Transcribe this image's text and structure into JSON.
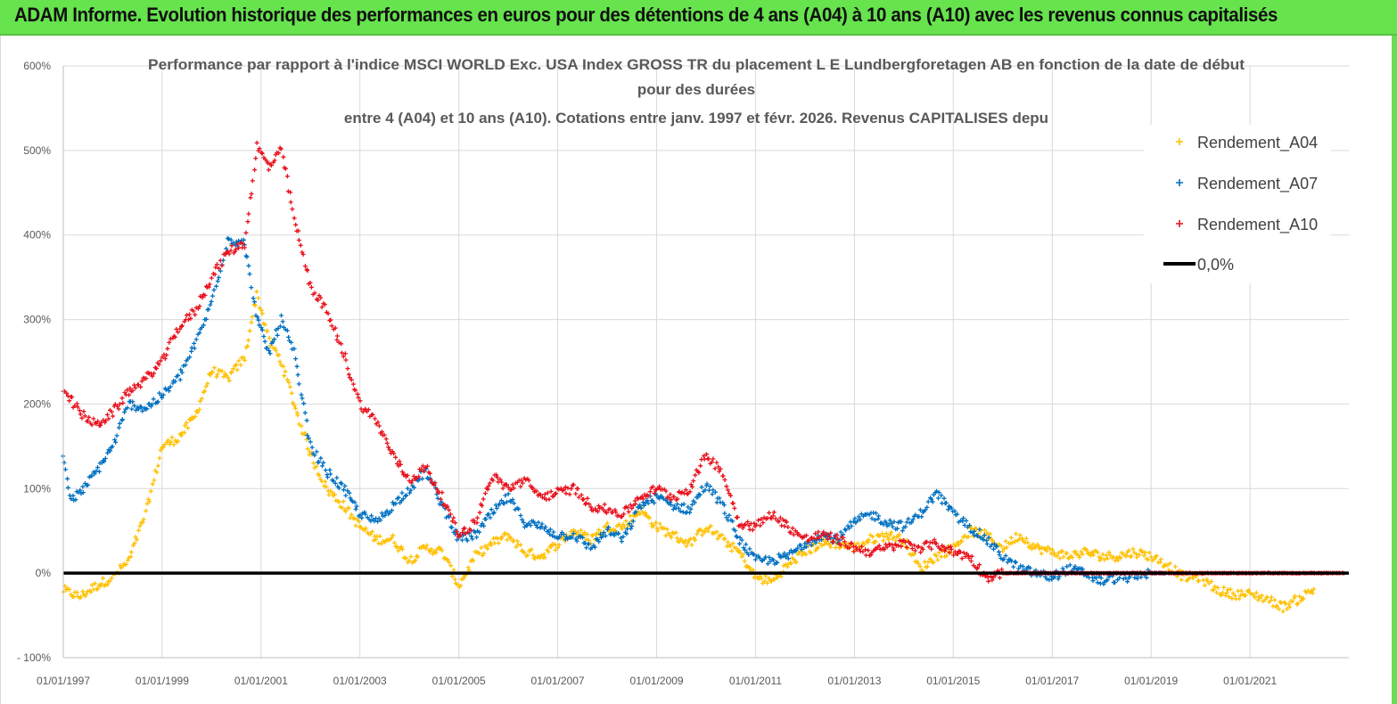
{
  "banner": {
    "title": "ADAM Informe. Evolution historique des performances en euros pour des détentions de 4 ans (A04) à 10 ans (A10) avec les revenus connus capitalisés",
    "background": "#66e34d"
  },
  "chart_data": {
    "type": "scatter",
    "title_lines": [
      "Performance par rapport à l'indice MSCI WORLD Exc. USA Index GROSS TR  du placement L E Lundbergforetagen AB en fonction de la date de début",
      "pour des durées",
      "entre 4 (A04) et 10 ans (A10). Cotations entre janv. 1997 et févr. 2026. Revenus CAPITALISES depu"
    ],
    "xlabel": "",
    "ylabel": "",
    "x_ticks": [
      "01/01/1997",
      "01/01/1999",
      "01/01/2001",
      "01/01/2003",
      "01/01/2005",
      "01/01/2007",
      "01/01/2009",
      "01/01/2011",
      "01/01/2013",
      "01/01/2015",
      "01/01/2017",
      "01/01/2019",
      "01/01/2021"
    ],
    "xlim": [
      "1997-01-01",
      "2023-01-01"
    ],
    "y_ticks": [
      "- 100%",
      "0%",
      "100%",
      "200%",
      "300%",
      "400%",
      "500%",
      "600%"
    ],
    "ylim": [
      -100,
      600
    ],
    "y_unit": "%",
    "grid": "vertical and horizontal, light gray",
    "legend_position": "top-right",
    "marker": "plus",
    "series": [
      {
        "name": "Rendement_A04",
        "color": "#ffc000",
        "points": [
          [
            "1997-01-01",
            -20
          ],
          [
            "1997-05-01",
            -28
          ],
          [
            "1997-09-01",
            -15
          ],
          [
            "1998-01-01",
            -5
          ],
          [
            "1998-05-01",
            15
          ],
          [
            "1998-09-01",
            70
          ],
          [
            "1999-01-01",
            150
          ],
          [
            "1999-05-01",
            160
          ],
          [
            "1999-09-01",
            185
          ],
          [
            "2000-01-01",
            240
          ],
          [
            "2000-05-01",
            230
          ],
          [
            "2000-09-01",
            255
          ],
          [
            "2000-12-01",
            330
          ],
          [
            "2001-03-01",
            275
          ],
          [
            "2001-06-01",
            250
          ],
          [
            "2001-09-01",
            200
          ],
          [
            "2002-01-01",
            140
          ],
          [
            "2002-05-01",
            100
          ],
          [
            "2002-09-01",
            80
          ],
          [
            "2003-01-01",
            55
          ],
          [
            "2003-05-01",
            40
          ],
          [
            "2003-09-01",
            40
          ],
          [
            "2004-01-01",
            15
          ],
          [
            "2004-05-01",
            30
          ],
          [
            "2004-09-01",
            25
          ],
          [
            "2005-01-01",
            -15
          ],
          [
            "2005-05-01",
            20
          ],
          [
            "2005-09-01",
            35
          ],
          [
            "2006-01-01",
            45
          ],
          [
            "2006-05-01",
            25
          ],
          [
            "2006-09-01",
            20
          ],
          [
            "2007-01-01",
            35
          ],
          [
            "2007-05-01",
            50
          ],
          [
            "2007-09-01",
            40
          ],
          [
            "2008-01-01",
            55
          ],
          [
            "2008-05-01",
            55
          ],
          [
            "2008-09-01",
            75
          ],
          [
            "2009-01-01",
            55
          ],
          [
            "2009-05-01",
            45
          ],
          [
            "2009-09-01",
            35
          ],
          [
            "2010-01-01",
            55
          ],
          [
            "2010-05-01",
            40
          ],
          [
            "2010-09-01",
            25
          ],
          [
            "2011-01-01",
            -5
          ],
          [
            "2011-05-01",
            -10
          ],
          [
            "2011-09-01",
            10
          ],
          [
            "2012-01-01",
            25
          ],
          [
            "2012-05-01",
            35
          ],
          [
            "2012-09-01",
            35
          ],
          [
            "2013-01-01",
            30
          ],
          [
            "2013-05-01",
            40
          ],
          [
            "2013-09-01",
            45
          ],
          [
            "2014-01-01",
            40
          ],
          [
            "2014-05-01",
            5
          ],
          [
            "2014-09-01",
            20
          ],
          [
            "2015-01-01",
            30
          ],
          [
            "2015-05-01",
            50
          ],
          [
            "2015-09-01",
            45
          ],
          [
            "2016-01-01",
            30
          ],
          [
            "2016-05-01",
            45
          ],
          [
            "2016-09-01",
            30
          ],
          [
            "2017-01-01",
            25
          ],
          [
            "2017-05-01",
            20
          ],
          [
            "2017-09-01",
            25
          ],
          [
            "2018-01-01",
            20
          ],
          [
            "2018-05-01",
            20
          ],
          [
            "2018-09-01",
            25
          ],
          [
            "2019-01-01",
            20
          ],
          [
            "2019-05-01",
            10
          ],
          [
            "2019-09-01",
            -5
          ],
          [
            "2020-01-01",
            -5
          ],
          [
            "2020-05-01",
            -20
          ],
          [
            "2020-09-01",
            -25
          ],
          [
            "2021-01-01",
            -25
          ],
          [
            "2021-05-01",
            -30
          ],
          [
            "2021-09-01",
            -40
          ],
          [
            "2022-01-01",
            -30
          ],
          [
            "2022-05-01",
            -18
          ]
        ]
      },
      {
        "name": "Rendement_A07",
        "color": "#0070c0",
        "points": [
          [
            "1997-01-01",
            140
          ],
          [
            "1997-03-01",
            85
          ],
          [
            "1997-06-01",
            100
          ],
          [
            "1997-09-01",
            120
          ],
          [
            "1998-01-01",
            150
          ],
          [
            "1998-05-01",
            200
          ],
          [
            "1998-09-01",
            195
          ],
          [
            "1999-01-01",
            210
          ],
          [
            "1999-05-01",
            230
          ],
          [
            "1999-09-01",
            270
          ],
          [
            "2000-01-01",
            320
          ],
          [
            "2000-05-01",
            395
          ],
          [
            "2000-09-01",
            390
          ],
          [
            "2000-12-01",
            300
          ],
          [
            "2001-03-01",
            260
          ],
          [
            "2001-06-01",
            300
          ],
          [
            "2001-09-01",
            260
          ],
          [
            "2002-01-01",
            150
          ],
          [
            "2002-05-01",
            120
          ],
          [
            "2002-09-01",
            100
          ],
          [
            "2003-01-01",
            70
          ],
          [
            "2003-05-01",
            60
          ],
          [
            "2003-09-01",
            80
          ],
          [
            "2004-01-01",
            100
          ],
          [
            "2004-05-01",
            120
          ],
          [
            "2004-09-01",
            80
          ],
          [
            "2005-01-01",
            40
          ],
          [
            "2005-05-01",
            45
          ],
          [
            "2005-09-01",
            70
          ],
          [
            "2006-01-01",
            90
          ],
          [
            "2006-05-01",
            60
          ],
          [
            "2006-09-01",
            55
          ],
          [
            "2007-01-01",
            45
          ],
          [
            "2007-05-01",
            45
          ],
          [
            "2007-09-01",
            30
          ],
          [
            "2008-01-01",
            50
          ],
          [
            "2008-05-01",
            40
          ],
          [
            "2008-09-01",
            80
          ],
          [
            "2009-01-01",
            90
          ],
          [
            "2009-05-01",
            80
          ],
          [
            "2009-09-01",
            75
          ],
          [
            "2010-01-01",
            105
          ],
          [
            "2010-05-01",
            80
          ],
          [
            "2010-09-01",
            40
          ],
          [
            "2011-01-01",
            15
          ],
          [
            "2011-05-01",
            15
          ],
          [
            "2011-09-01",
            20
          ],
          [
            "2012-01-01",
            35
          ],
          [
            "2012-05-01",
            45
          ],
          [
            "2012-09-01",
            40
          ],
          [
            "2013-01-01",
            60
          ],
          [
            "2013-05-01",
            70
          ],
          [
            "2013-09-01",
            60
          ],
          [
            "2014-01-01",
            55
          ],
          [
            "2014-05-01",
            70
          ],
          [
            "2014-09-01",
            95
          ],
          [
            "2015-01-01",
            70
          ],
          [
            "2015-05-01",
            55
          ],
          [
            "2015-09-01",
            40
          ],
          [
            "2016-01-01",
            20
          ],
          [
            "2016-05-01",
            5
          ],
          [
            "2016-09-01",
            0
          ],
          [
            "2017-01-01",
            -5
          ],
          [
            "2017-05-01",
            5
          ],
          [
            "2017-09-01",
            0
          ],
          [
            "2018-01-01",
            -10
          ],
          [
            "2018-05-01",
            -5
          ],
          [
            "2018-09-01",
            -5
          ],
          [
            "2019-01-01",
            0
          ],
          [
            "2019-05-01",
            0
          ]
        ]
      },
      {
        "name": "Rendement_A10",
        "color": "#e8111c",
        "points": [
          [
            "1997-01-01",
            220
          ],
          [
            "1997-05-01",
            190
          ],
          [
            "1997-09-01",
            175
          ],
          [
            "1998-01-01",
            190
          ],
          [
            "1998-05-01",
            215
          ],
          [
            "1998-09-01",
            230
          ],
          [
            "1999-01-01",
            250
          ],
          [
            "1999-05-01",
            290
          ],
          [
            "1999-09-01",
            310
          ],
          [
            "2000-01-01",
            350
          ],
          [
            "2000-05-01",
            380
          ],
          [
            "2000-09-01",
            390
          ],
          [
            "2000-12-01",
            505
          ],
          [
            "2001-03-01",
            480
          ],
          [
            "2001-06-01",
            500
          ],
          [
            "2001-09-01",
            420
          ],
          [
            "2002-01-01",
            340
          ],
          [
            "2002-05-01",
            310
          ],
          [
            "2002-09-01",
            260
          ],
          [
            "2003-01-01",
            200
          ],
          [
            "2003-05-01",
            180
          ],
          [
            "2003-09-01",
            140
          ],
          [
            "2004-01-01",
            110
          ],
          [
            "2004-05-01",
            125
          ],
          [
            "2004-09-01",
            90
          ],
          [
            "2005-01-01",
            45
          ],
          [
            "2005-05-01",
            60
          ],
          [
            "2005-09-01",
            115
          ],
          [
            "2006-01-01",
            100
          ],
          [
            "2006-05-01",
            110
          ],
          [
            "2006-09-01",
            90
          ],
          [
            "2007-01-01",
            95
          ],
          [
            "2007-05-01",
            100
          ],
          [
            "2007-09-01",
            80
          ],
          [
            "2008-01-01",
            75
          ],
          [
            "2008-05-01",
            70
          ],
          [
            "2008-09-01",
            90
          ],
          [
            "2009-01-01",
            100
          ],
          [
            "2009-05-01",
            90
          ],
          [
            "2009-09-01",
            100
          ],
          [
            "2010-01-01",
            140
          ],
          [
            "2010-05-01",
            120
          ],
          [
            "2010-09-01",
            60
          ],
          [
            "2011-01-01",
            55
          ],
          [
            "2011-05-01",
            70
          ],
          [
            "2011-09-01",
            55
          ],
          [
            "2012-01-01",
            40
          ],
          [
            "2012-05-01",
            45
          ],
          [
            "2012-09-01",
            40
          ],
          [
            "2013-01-01",
            30
          ],
          [
            "2013-05-01",
            25
          ],
          [
            "2013-09-01",
            30
          ],
          [
            "2014-01-01",
            35
          ],
          [
            "2014-05-01",
            30
          ],
          [
            "2014-09-01",
            35
          ],
          [
            "2015-01-01",
            25
          ],
          [
            "2015-05-01",
            20
          ],
          [
            "2015-09-01",
            -5
          ],
          [
            "2016-01-01",
            0
          ],
          [
            "2016-05-01",
            0
          ],
          [
            "2017-01-01",
            0
          ],
          [
            "2018-01-01",
            0
          ],
          [
            "2019-01-01",
            0
          ],
          [
            "2020-01-01",
            0
          ],
          [
            "2021-01-01",
            0
          ],
          [
            "2022-01-01",
            0
          ],
          [
            "2022-12-01",
            0
          ]
        ]
      },
      {
        "name": "0,0%",
        "color": "#000000",
        "points": [
          [
            "1997-01-01",
            0
          ],
          [
            "2023-01-01",
            0
          ]
        ]
      }
    ]
  }
}
